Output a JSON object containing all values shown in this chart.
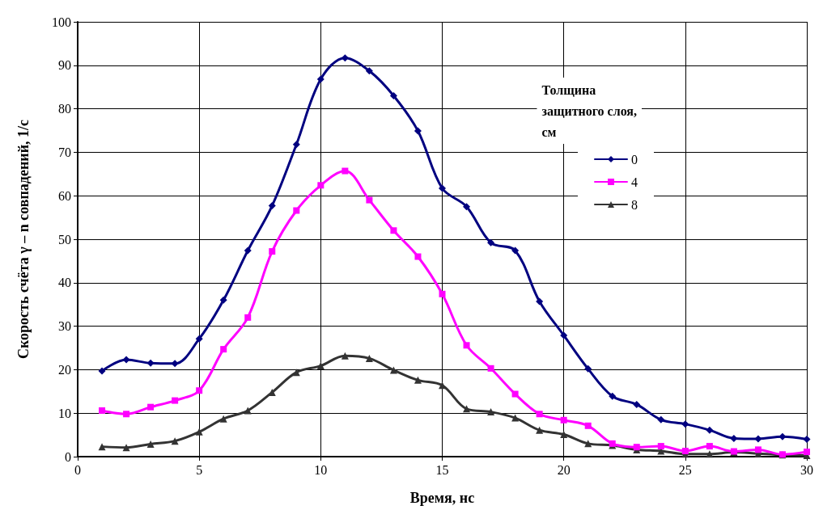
{
  "chart_data": {
    "type": "line",
    "xlabel": "Время, нс",
    "ylabel": "Скорость счёта γ – n совпадений, 1/с",
    "legend_title": "Толщина защитного слоя, см",
    "legend": "top right",
    "grid": true,
    "line_style": "solid",
    "xlim": [
      0,
      30
    ],
    "xticks": [
      0,
      5,
      10,
      15,
      20,
      25,
      30
    ],
    "ylim": [
      0,
      100
    ],
    "yticks": [
      0,
      10,
      20,
      30,
      40,
      50,
      60,
      70,
      80,
      90,
      100
    ],
    "x": [
      1,
      2,
      3,
      4,
      5,
      6,
      7,
      8,
      9,
      10,
      11,
      12,
      13,
      14,
      15,
      16,
      17,
      18,
      19,
      20,
      21,
      22,
      23,
      24,
      25,
      26,
      27,
      28,
      29,
      30
    ],
    "series": [
      {
        "name": "0",
        "color": "#000080",
        "marker": "diamond",
        "values": [
          19.7,
          22.3,
          21.5,
          21.4,
          27.1,
          36,
          47.4,
          57.7,
          71.8,
          86.8,
          91.7,
          88.7,
          83,
          74.9,
          61.7,
          57.5,
          49.2,
          47.4,
          35.7,
          27.9,
          20.2,
          13.9,
          12,
          8.5,
          7.5,
          6.1,
          4.2,
          4.1,
          4.6,
          4.0
        ]
      },
      {
        "name": "4",
        "color": "#ff00ff",
        "marker": "square",
        "values": [
          10.6,
          9.8,
          11.4,
          12.9,
          15.2,
          24.7,
          32,
          47.2,
          56.6,
          62.4,
          65.7,
          59,
          52,
          46,
          37.4,
          25.6,
          20.3,
          14.4,
          9.8,
          8.4,
          7.1,
          3.0,
          2.2,
          2.4,
          1.3,
          2.4,
          1.2,
          1.6,
          0.5,
          1.1
        ]
      },
      {
        "name": "8",
        "color": "#333333",
        "marker": "triangle",
        "values": [
          2.3,
          2.1,
          2.9,
          3.6,
          5.7,
          8.7,
          10.6,
          14.8,
          19.4,
          20.9,
          23.2,
          22.6,
          19.9,
          17.6,
          16.4,
          11.0,
          10.3,
          8.9,
          6.1,
          5.1,
          3.0,
          2.6,
          1.6,
          1.3,
          0.6,
          0.6,
          1.0,
          0.7,
          0.4,
          0.3
        ]
      }
    ]
  }
}
